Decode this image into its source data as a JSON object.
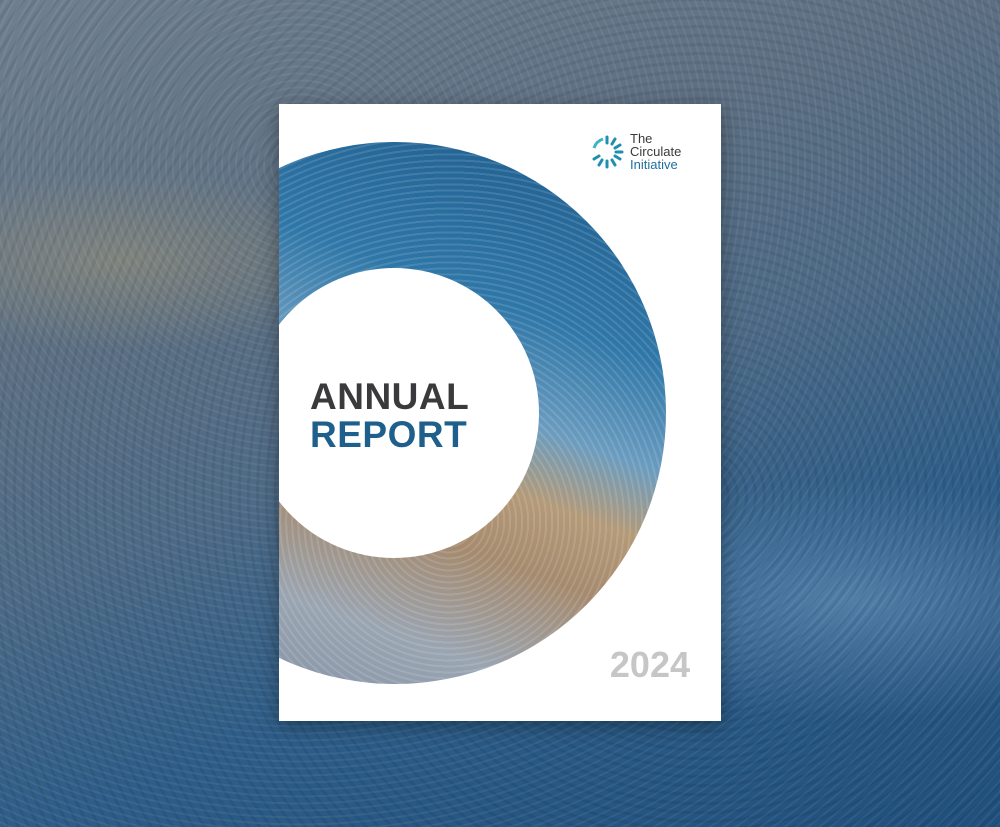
{
  "logo": {
    "line1": "The",
    "line2": "Circulate",
    "line3": "Initiative",
    "icon": "circular-burst-logo"
  },
  "cover": {
    "title_line1": "ANNUAL",
    "title_line2": "REPORT",
    "year": "2024"
  },
  "colors": {
    "title_dark": "#3a3a3c",
    "title_blue": "#1f5f8b",
    "year_gray": "#c6c6c6",
    "logo_teal": "#1f8fb0"
  }
}
